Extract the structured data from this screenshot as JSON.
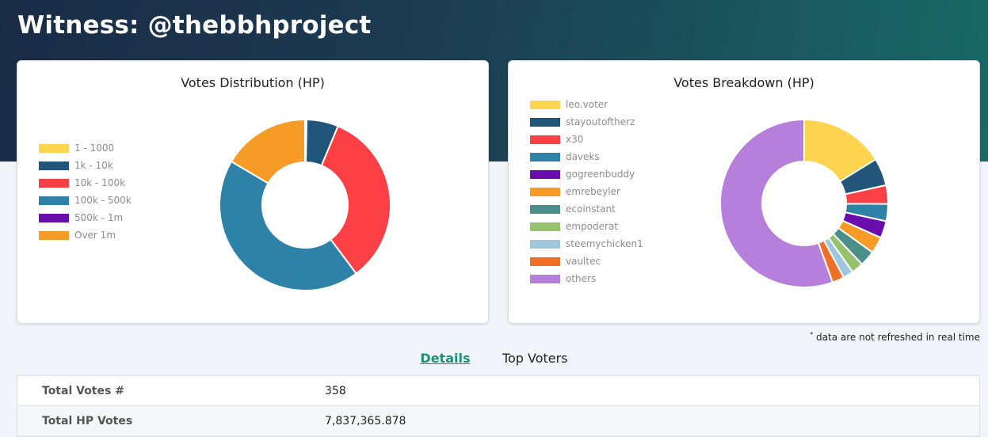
{
  "page": {
    "title": "Witness: @thebbhproject"
  },
  "charts": {
    "distribution_title": "Votes Distribution (HP)",
    "breakdown_title": "Votes Breakdown (HP)"
  },
  "chart_data": [
    {
      "type": "pie",
      "title": "Votes Distribution (HP)",
      "donut": true,
      "legend_position": "left",
      "series": [
        {
          "label": "1 - 1000",
          "value": 0.3,
          "color": "#fcd44f"
        },
        {
          "label": "1k - 10k",
          "value": 6.0,
          "color": "#22557a"
        },
        {
          "label": "10k - 100k",
          "value": 33.5,
          "color": "#fb4045"
        },
        {
          "label": "100k - 500k",
          "value": 43.7,
          "color": "#2e82a8"
        },
        {
          "label": "500k - 1m",
          "value": 0.0,
          "color": "#6a0dad"
        },
        {
          "label": "Over 1m",
          "value": 16.5,
          "color": "#f79b27"
        }
      ]
    },
    {
      "type": "pie",
      "title": "Votes Breakdown (HP)",
      "donut": true,
      "legend_position": "left",
      "series": [
        {
          "label": "leo.voter",
          "value": 16.2,
          "color": "#fcd44f"
        },
        {
          "label": "stayoutoftherz",
          "value": 5.3,
          "color": "#22557a"
        },
        {
          "label": "x30",
          "value": 3.6,
          "color": "#fb4045"
        },
        {
          "label": "daveks",
          "value": 3.3,
          "color": "#2e82a8"
        },
        {
          "label": "gogreenbuddy",
          "value": 3.3,
          "color": "#6a0dad"
        },
        {
          "label": "emrebeyler",
          "value": 3.2,
          "color": "#f79b27"
        },
        {
          "label": "ecoinstant",
          "value": 3.0,
          "color": "#4a8f8a"
        },
        {
          "label": "empoderat",
          "value": 2.3,
          "color": "#96c26d"
        },
        {
          "label": "steemychicken1",
          "value": 2.0,
          "color": "#9ec6dc"
        },
        {
          "label": "vaultec",
          "value": 2.3,
          "color": "#ee6f28"
        },
        {
          "label": "others",
          "value": 55.5,
          "color": "#b67fdb"
        }
      ]
    }
  ],
  "note": {
    "marker": "*",
    "text": " data are not refreshed in real time"
  },
  "tabs": [
    {
      "label": "Details",
      "active": true
    },
    {
      "label": "Top Voters",
      "active": false
    }
  ],
  "details": [
    {
      "key": "Total Votes #",
      "value": "358"
    },
    {
      "key": "Total HP Votes",
      "value": "7,837,365.878"
    }
  ]
}
